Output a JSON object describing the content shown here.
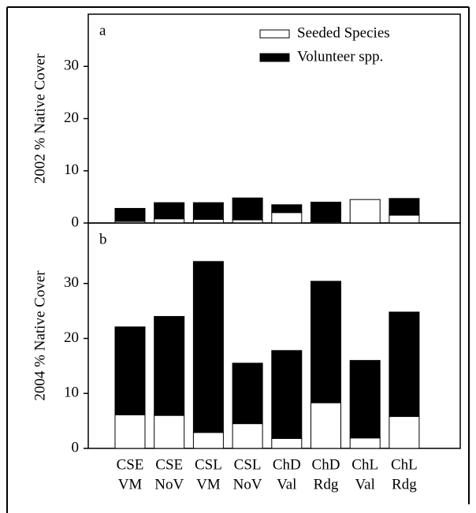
{
  "chart_data": [
    {
      "type": "stacked_bar",
      "annotation": "a",
      "ylabel": "2002 % Native Cover",
      "ylim": [
        0,
        40
      ],
      "yticks": [
        0,
        10,
        20,
        30
      ],
      "legend": "top-right",
      "series": [
        {
          "name": "Seeded Species",
          "color": "#ffffff",
          "values": [
            0.3,
            0.8,
            0.7,
            0.6,
            2.0,
            0.2,
            4.5,
            1.5
          ]
        },
        {
          "name": "Volunteer spp.",
          "color": "#000000",
          "values": [
            2.5,
            3.1,
            3.2,
            4.2,
            1.5,
            3.8,
            0,
            3.2
          ]
        }
      ]
    },
    {
      "type": "stacked_bar",
      "annotation": "b",
      "ylabel": "2004 % Native Cover",
      "ylim": [
        0,
        41
      ],
      "yticks": [
        0,
        10,
        20,
        30
      ],
      "categories": [
        [
          "CSE",
          "VM"
        ],
        [
          "CSE",
          "NoV"
        ],
        [
          "CSL",
          "VM"
        ],
        [
          "CSL",
          "NoV"
        ],
        [
          "ChD",
          "Val"
        ],
        [
          "ChD",
          "Rdg"
        ],
        [
          "ChL",
          "Val"
        ],
        [
          "ChL",
          "Rdg"
        ]
      ],
      "series": [
        {
          "color": "#ffffff",
          "values": [
            6.1,
            6.0,
            2.9,
            4.5,
            1.8,
            8.3,
            1.9,
            5.8
          ]
        },
        {
          "color": "#000000",
          "values": [
            16.0,
            18.0,
            31.1,
            11.0,
            16.0,
            22.1,
            14.1,
            19.0
          ]
        }
      ]
    }
  ]
}
